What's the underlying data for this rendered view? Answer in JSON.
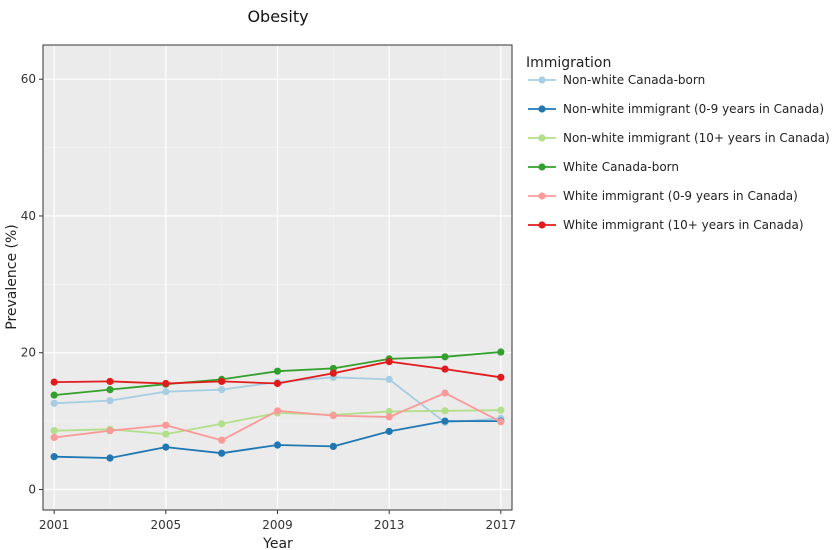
{
  "chart_data": {
    "type": "line",
    "title": "Obesity",
    "xlabel": "Year",
    "ylabel": "Prevalence (%)",
    "xlim": [
      2000.6,
      2017.4
    ],
    "ylim": [
      -3,
      65
    ],
    "x_ticks": [
      2001,
      2005,
      2009,
      2013,
      2017
    ],
    "y_ticks": [
      0,
      20,
      40,
      60
    ],
    "grid": true,
    "legend_title": "Immigration",
    "legend_position": "right",
    "x": [
      2001,
      2003,
      2005,
      2007,
      2009,
      2011,
      2013,
      2015,
      2017
    ],
    "series": [
      {
        "name": "Non-white Canada-born",
        "color": "#a6cee3",
        "values": [
          12.6,
          13.0,
          14.3,
          14.6,
          15.7,
          16.4,
          16.1,
          9.8,
          10.4
        ]
      },
      {
        "name": "Non-white immigrant (0-9 years in Canada)",
        "color": "#1f78b4",
        "values": [
          4.8,
          4.6,
          6.2,
          5.3,
          6.5,
          6.3,
          8.5,
          10.0,
          10.0
        ]
      },
      {
        "name": "Non-white immigrant (10+ years in Canada)",
        "color": "#b2df8a",
        "values": [
          8.6,
          8.8,
          8.1,
          9.6,
          11.2,
          10.9,
          11.4,
          11.5,
          11.6
        ]
      },
      {
        "name": "White Canada-born",
        "color": "#33a02c",
        "values": [
          13.8,
          14.6,
          15.4,
          16.1,
          17.3,
          17.7,
          19.1,
          19.4,
          20.1
        ]
      },
      {
        "name": "White immigrant  (0-9 years in Canada)",
        "color": "#fb9a99",
        "values": [
          7.6,
          8.6,
          9.4,
          7.2,
          11.5,
          10.8,
          10.6,
          14.1,
          9.9
        ]
      },
      {
        "name": "White immigrant (10+ years in Canada)",
        "color": "#e31a1c",
        "values": [
          15.7,
          15.8,
          15.5,
          15.8,
          15.5,
          17.0,
          18.7,
          17.6,
          16.4
        ]
      }
    ]
  }
}
